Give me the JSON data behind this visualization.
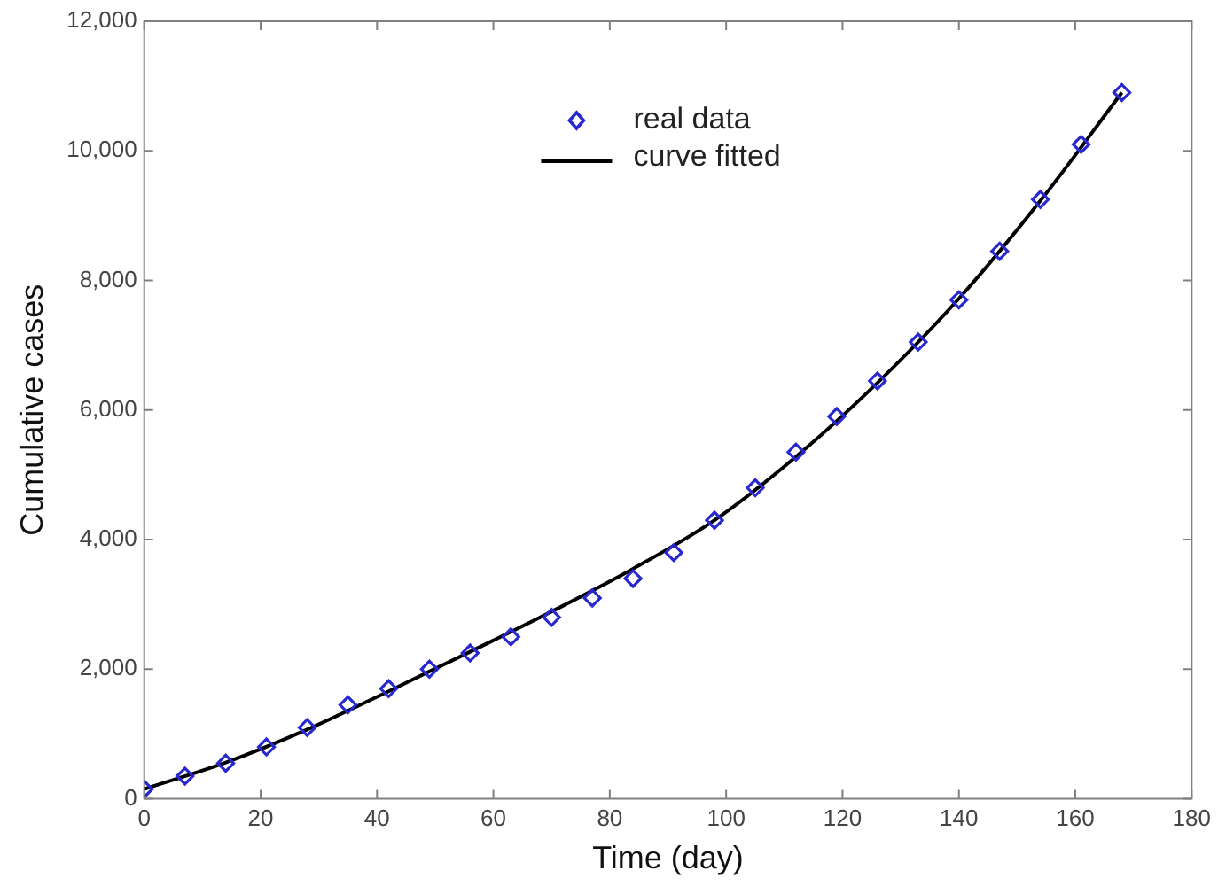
{
  "chart_data": {
    "type": "scatter",
    "xlabel": "Time (day)",
    "ylabel": "Cumulative cases",
    "xlim": [
      0,
      180
    ],
    "xticks": [
      0,
      20,
      40,
      60,
      80,
      100,
      120,
      140,
      160,
      180
    ],
    "ylim": [
      0,
      12000
    ],
    "yticks": [
      0,
      {
        "value": 2000,
        "label": "2,000"
      },
      {
        "value": 4000,
        "label": "4,000"
      },
      {
        "value": 6000,
        "label": "6,000"
      },
      {
        "value": 8000,
        "label": "8,000"
      },
      {
        "value": 10000,
        "label": "10,000"
      },
      {
        "value": 12000,
        "label": "12,000"
      }
    ],
    "grid": false,
    "legend": "top",
    "series": [
      {
        "name": "real data",
        "type": "scatter",
        "marker": "diamond",
        "color": "#2828d0",
        "x": [
          0,
          7,
          14,
          21,
          28,
          35,
          42,
          49,
          56,
          63,
          70,
          77,
          84,
          91,
          98,
          105,
          112,
          119,
          126,
          133,
          140,
          147,
          154,
          161,
          168
        ],
        "values": [
          150,
          350,
          550,
          800,
          1100,
          1450,
          1700,
          2000,
          2250,
          2500,
          2800,
          3100,
          3400,
          3800,
          4300,
          4800,
          5350,
          5900,
          6450,
          7050,
          7700,
          8450,
          9250,
          10100,
          10900
        ]
      },
      {
        "name": "curve fitted",
        "type": "line",
        "marker": "none",
        "line_style": "solid",
        "color": "#000000",
        "x": [
          0,
          14,
          28,
          42,
          56,
          70,
          84,
          98,
          112,
          126,
          140,
          154,
          168
        ],
        "values": [
          150,
          560,
          1070,
          1660,
          2270,
          2890,
          3550,
          4300,
          5280,
          6420,
          7720,
          9230,
          10900
        ]
      }
    ]
  }
}
